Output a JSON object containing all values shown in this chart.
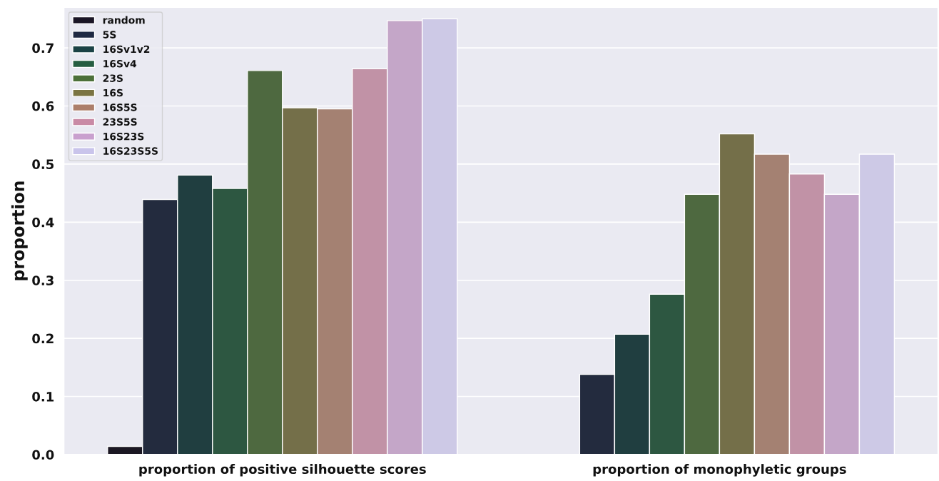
{
  "chart_data": {
    "type": "bar",
    "ylabel": "proportion",
    "categories": [
      "proportion of positive silhouette scores",
      "proportion of monophyletic groups"
    ],
    "series": [
      {
        "name": "random",
        "color": "#1a1525",
        "values": [
          0.014,
          null
        ]
      },
      {
        "name": "5S",
        "color": "#1f2942",
        "values": [
          0.439,
          0.138
        ]
      },
      {
        "name": "16Sv1v2",
        "color": "#1b4245",
        "values": [
          0.481,
          0.207
        ]
      },
      {
        "name": "16Sv4",
        "color": "#265e41",
        "values": [
          0.458,
          0.276
        ]
      },
      {
        "name": "23S",
        "color": "#4c7039",
        "values": [
          0.661,
          0.448
        ]
      },
      {
        "name": "16S",
        "color": "#7b7442",
        "values": [
          0.597,
          0.552
        ]
      },
      {
        "name": "16S5S",
        "color": "#ac7e6a",
        "values": [
          0.595,
          0.517
        ]
      },
      {
        "name": "23S5S",
        "color": "#c98aa5",
        "values": [
          0.664,
          0.483
        ]
      },
      {
        "name": "16S23S",
        "color": "#c9a0ce",
        "values": [
          0.747,
          0.448
        ]
      },
      {
        "name": "16S23S5S",
        "color": "#c9c4eb",
        "values": [
          0.75,
          0.517
        ]
      }
    ],
    "ylim": [
      0,
      0.77
    ],
    "yticks": [
      {
        "value": 0,
        "label": "0.0"
      },
      0.1,
      0.2,
      0.3,
      0.4,
      0.5,
      0.6,
      0.7
    ],
    "grid": "y",
    "legend": "top left"
  }
}
